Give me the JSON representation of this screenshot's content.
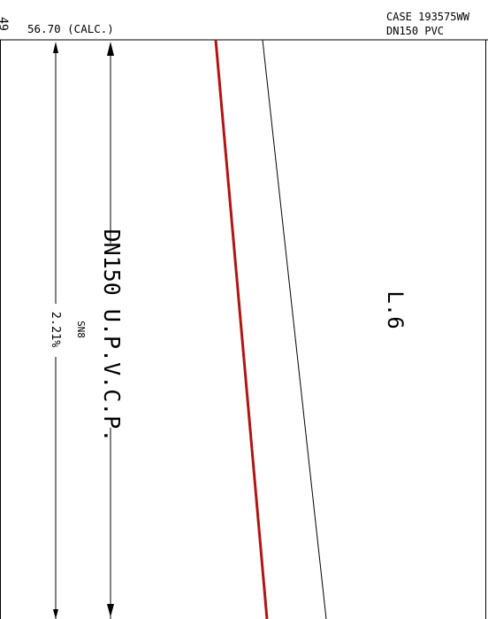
{
  "header": {
    "chainage_fragment": "49",
    "level": "56.70 (CALC.)",
    "case_ref": "CASE 193575WW",
    "pipe_spec": "DN150 PVC"
  },
  "section": {
    "pipe_label": "DN150 U.P.V.C.P.",
    "pipe_class": "SN8",
    "gradient": "2.21%",
    "line_label": "L.6"
  },
  "colors": {
    "pipe_line": "#b01414",
    "ink": "#000000",
    "background": "#ffffff"
  }
}
